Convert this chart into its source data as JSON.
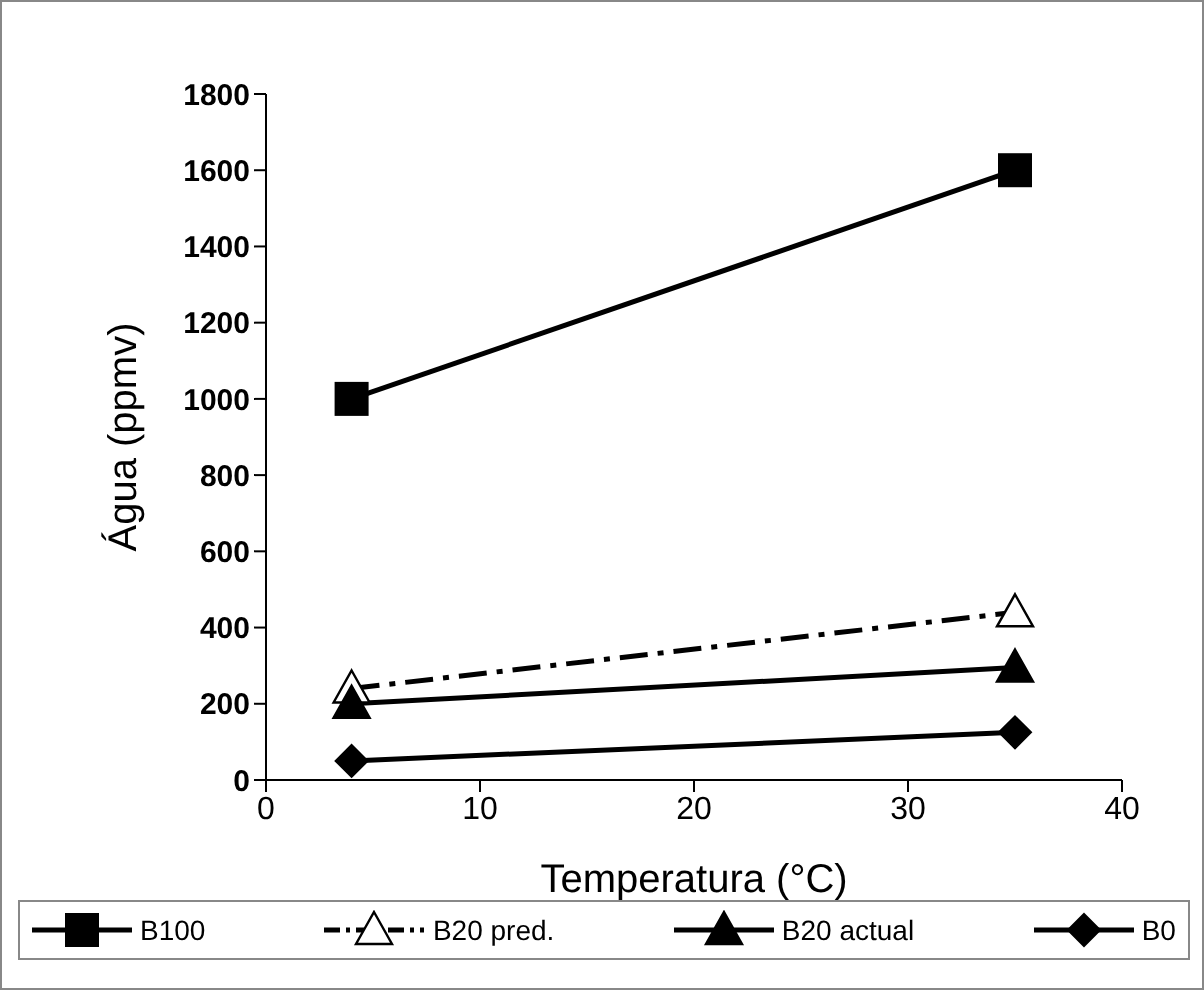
{
  "chart_data": {
    "type": "line",
    "xlabel": "Temperatura (°C)",
    "ylabel": "Água (ppmv)",
    "x": [
      4,
      35
    ],
    "series": [
      {
        "name": "B100",
        "color": "#000000",
        "values": [
          1000,
          1600
        ],
        "marker": "square",
        "line_style": "solid"
      },
      {
        "name": "B20 pred.",
        "color": "#000000",
        "values": [
          240,
          440
        ],
        "marker": "triangle",
        "line_style": "dashed"
      },
      {
        "name": "B20 actual",
        "color": "#000000",
        "values": [
          200,
          295
        ],
        "marker": "triangle",
        "line_style": "solid"
      },
      {
        "name": "B0",
        "color": "#000000",
        "values": [
          50,
          125
        ],
        "marker": "diamond",
        "line_style": "solid"
      }
    ],
    "xlim": [
      0,
      40
    ],
    "xticks": [
      0,
      10,
      20,
      30,
      40
    ],
    "ylim": [
      0,
      1800
    ],
    "yticks": [
      0,
      200,
      400,
      600,
      800,
      1000,
      1200,
      1400,
      1600,
      1800
    ],
    "grid": false,
    "legend": "bottom"
  }
}
